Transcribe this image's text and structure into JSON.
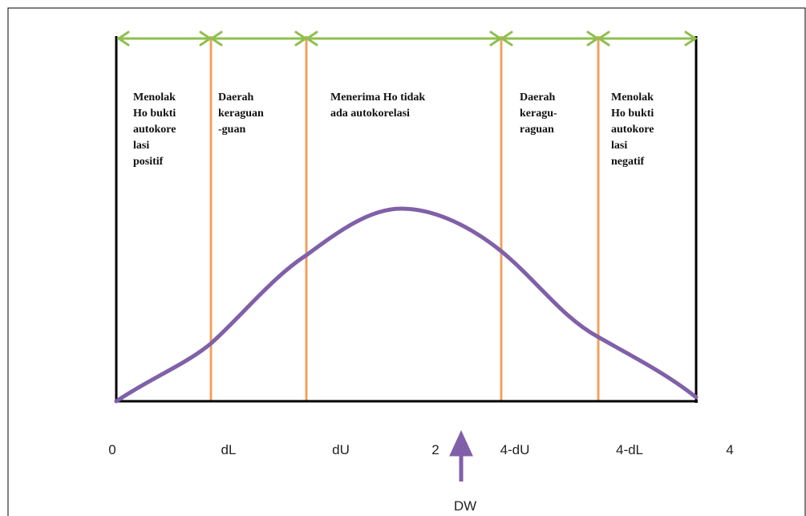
{
  "regions": [
    {
      "lines": [
        "Menolak",
        "Ho bukti",
        "autokore",
        "lasi",
        "positif"
      ]
    },
    {
      "lines": [
        "Daerah",
        "keraguan",
        "-guan"
      ]
    },
    {
      "lines": [
        "Menerima Ho tidak",
        "ada autokorelasi"
      ]
    },
    {
      "lines": [
        "Daerah",
        "keragu-",
        "raguan"
      ]
    },
    {
      "lines": [
        "Menolak",
        "Ho bukti",
        "autokore",
        "lasi",
        "negatif"
      ]
    }
  ],
  "axis_labels": [
    "0",
    "dL",
    "dU",
    "2",
    "4-dU",
    "4-dL",
    "4"
  ],
  "arrow_label": "DW"
}
